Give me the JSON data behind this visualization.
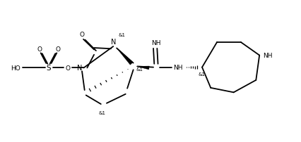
{
  "background": "#ffffff",
  "line_color": "#000000",
  "lw": 1.3,
  "fig_width": 4.26,
  "fig_height": 2.03,
  "dpi": 100,
  "xlim": [
    0,
    10.5
  ],
  "ylim": [
    0,
    5.0
  ]
}
